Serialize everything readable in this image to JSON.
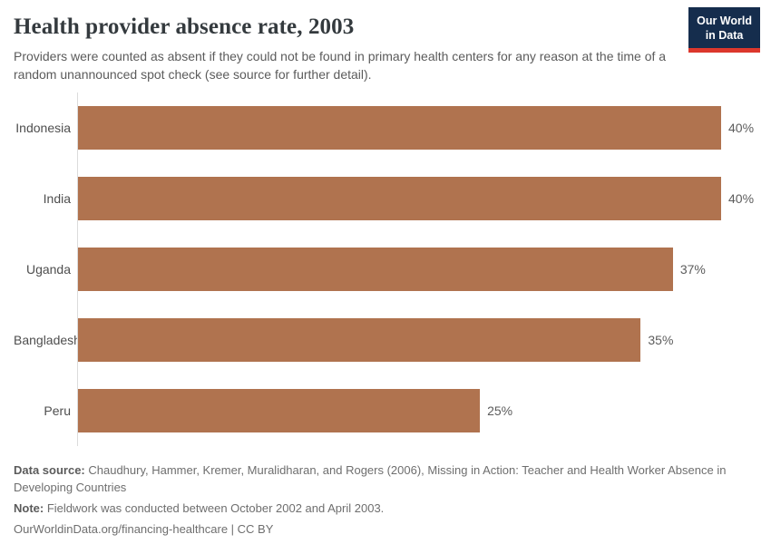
{
  "header": {
    "title": "Health provider absence rate, 2003",
    "subtitle": "Providers were counted as absent if they could not be found in primary health centers for any reason at the time of a random unannounced spot check (see source for further detail).",
    "logo": {
      "line1": "Our World",
      "line2": "in Data"
    }
  },
  "chart_data": {
    "type": "bar",
    "orientation": "horizontal",
    "title": "Health provider absence rate, 2003",
    "categories": [
      "Indonesia",
      "India",
      "Uganda",
      "Bangladesh",
      "Peru"
    ],
    "values": [
      40,
      40,
      37,
      35,
      25
    ],
    "value_labels": [
      "40%",
      "40%",
      "37%",
      "35%",
      "25%"
    ],
    "unit": "%",
    "xlabel": "",
    "ylabel": "",
    "xlim": [
      0,
      40
    ],
    "grid": false,
    "legend": false,
    "bar_color": "#b0734f",
    "axis_line_color": "#dcdcdc"
  },
  "footer": {
    "source_label": "Data source:",
    "source_text": " Chaudhury, Hammer, Kremer, Muralidharan, and Rogers (2006), Missing in Action: Teacher and Health Worker Absence in Developing Countries",
    "note_label": "Note:",
    "note_text": " Fieldwork was conducted between October 2002 and April 2003.",
    "link": "OurWorldinData.org/financing-healthcare | CC BY"
  },
  "colors": {
    "bar": "#b0734f",
    "logo_background": "#152d4d",
    "logo_accent": "#dc372c",
    "title_text": "#343a3e",
    "subtitle_text": "#5b5b5b"
  }
}
